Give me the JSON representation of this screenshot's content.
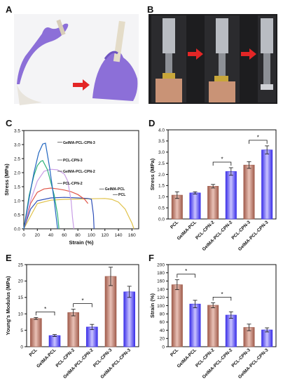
{
  "panels": {
    "a": "A",
    "b": "B",
    "c": "C",
    "d": "D",
    "e": "E",
    "f": "F"
  },
  "colors": {
    "bar_brown": "#a05c4c",
    "bar_blue": "#3b30e8",
    "pcl": "#e0c24a",
    "gelma_pcl": "#2e4fb8",
    "pcl_cpn2": "#e0574a",
    "gelma_pcl_cpn2": "#c99ee6",
    "pcl_cpn3": "#2db37a",
    "gelma_pcl_cpn3": "#2166c0",
    "arrow": "#e32626"
  },
  "icons": [
    "gloved-hands-photo",
    "tensile-tester-photo"
  ],
  "chart_data": [
    {
      "id": "C",
      "type": "line",
      "xlabel": "Strain (%)",
      "ylabel": "Stress (MPa)",
      "xlim": [
        0,
        170
      ],
      "ylim": [
        0,
        3.5
      ],
      "xticks": [
        "0",
        "20",
        "40",
        "60",
        "80",
        "100",
        "120",
        "140",
        "160"
      ],
      "yticks": [
        "0.0",
        "0.5",
        "1.0",
        "1.5",
        "2.0",
        "2.5",
        "3.0",
        "3.5"
      ],
      "series": [
        {
          "name": "PCL",
          "color_key": "pcl",
          "x": [
            0,
            20,
            40,
            60,
            80,
            100,
            120,
            130,
            140,
            150,
            155,
            160,
            163
          ],
          "y": [
            0,
            0.9,
            1.02,
            1.05,
            1.06,
            1.07,
            1.08,
            1.05,
            0.95,
            0.7,
            0.45,
            0.2,
            0
          ]
        },
        {
          "name": "GelMA-PCL",
          "color_key": "gelma_pcl",
          "x": [
            0,
            10,
            20,
            40,
            60,
            80,
            95,
            100,
            103,
            104
          ],
          "y": [
            0,
            0.7,
            1.0,
            1.1,
            1.12,
            1.1,
            1.08,
            1.05,
            0.5,
            0
          ]
        },
        {
          "name": "PCL-CPN-2",
          "color_key": "pcl_cpn2",
          "x": [
            0,
            10,
            20,
            30,
            40,
            50,
            60,
            70,
            80,
            90,
            95
          ],
          "y": [
            0,
            0.9,
            1.3,
            1.42,
            1.45,
            1.42,
            1.38,
            1.32,
            1.22,
            1.05,
            0.9
          ]
        },
        {
          "name": "GelMA-PCL-CPN-2",
          "color_key": "gelma_pcl_cpn2",
          "x": [
            0,
            10,
            20,
            30,
            40,
            50,
            60,
            65,
            70,
            72,
            74
          ],
          "y": [
            0,
            1.0,
            1.7,
            2.05,
            2.12,
            2.1,
            1.95,
            1.7,
            1.0,
            0.4,
            0
          ]
        },
        {
          "name": "PCL-CPN-3",
          "color_key": "pcl_cpn3",
          "x": [
            0,
            8,
            15,
            20,
            25,
            28,
            35,
            45,
            50,
            52
          ],
          "y": [
            0,
            1.2,
            1.9,
            2.25,
            2.4,
            2.43,
            2.1,
            1.2,
            0.5,
            0
          ]
        },
        {
          "name": "GelMA-PCL-CPN-3",
          "color_key": "gelma_pcl_cpn3",
          "x": [
            0,
            8,
            15,
            22,
            28,
            32,
            38,
            45,
            50
          ],
          "y": [
            0,
            1.1,
            2.0,
            2.7,
            3.02,
            3.05,
            2.2,
            1.0,
            0
          ]
        }
      ],
      "annotations": [
        {
          "text": "GelMA-PCL-CPN-3",
          "x": 58,
          "y": 3.08
        },
        {
          "text": "PCL-CPN-3",
          "x": 58,
          "y": 2.45
        },
        {
          "text": "GelMA-PCL-CPN-2",
          "x": 58,
          "y": 2.05
        },
        {
          "text": "PCL-CPN-2",
          "x": 58,
          "y": 1.62
        },
        {
          "text": "GelMA-PCL",
          "x": 120,
          "y": 1.42
        },
        {
          "text": "PCL",
          "x": 140,
          "y": 1.22
        }
      ]
    },
    {
      "id": "D",
      "type": "bar",
      "categories": [
        "PCL",
        "GelMA-PCL",
        "PCL-CPN-2",
        "GelMA-PCL-CPN-2",
        "PCL-CPN-3",
        "GelMA-PCL-CPN-3"
      ],
      "values": [
        1.07,
        1.17,
        1.47,
        2.13,
        2.42,
        3.1
      ],
      "errors": [
        0.15,
        0.05,
        0.08,
        0.17,
        0.15,
        0.18
      ],
      "bar_colors": [
        "bar_brown",
        "bar_blue",
        "bar_brown",
        "bar_blue",
        "bar_brown",
        "bar_blue"
      ],
      "ylabel": "Stress (MPa)",
      "ylim": [
        0,
        4.0
      ],
      "yticks": [
        "0.0",
        "0.5",
        "1.0",
        "1.5",
        "2.0",
        "2.5",
        "3.0",
        "3.5",
        "4.0"
      ],
      "significance": [
        {
          "from": 2,
          "to": 3,
          "label": "*"
        },
        {
          "from": 4,
          "to": 5,
          "label": "*"
        }
      ]
    },
    {
      "id": "E",
      "type": "bar",
      "categories": [
        "PCL",
        "GelMA-PCL",
        "PCL-CPN-2",
        "GelMA-PCL-CPN-2",
        "PCL-CPN-3",
        "GelMA-PCL-CPN-3"
      ],
      "values": [
        8.6,
        3.4,
        10.4,
        6.0,
        21.4,
        16.7
      ],
      "errors": [
        0.3,
        0.3,
        1.0,
        0.8,
        2.8,
        1.7
      ],
      "bar_colors": [
        "bar_brown",
        "bar_blue",
        "bar_brown",
        "bar_blue",
        "bar_brown",
        "bar_blue"
      ],
      "ylabel": "Young's Modulus (MPa)",
      "ylim": [
        0,
        25
      ],
      "yticks": [
        "0",
        "5",
        "10",
        "15",
        "20",
        "25"
      ],
      "significance": [
        {
          "from": 0,
          "to": 1,
          "label": "*"
        },
        {
          "from": 2,
          "to": 3,
          "label": "*"
        }
      ]
    },
    {
      "id": "F",
      "type": "bar",
      "categories": [
        "PCL",
        "GelMA-PCL",
        "PCL-CPN-2",
        "GelMA-PCL-CPN-2",
        "PCL-CPN-3",
        "GelMA-PCL-CPN-3"
      ],
      "values": [
        151,
        104,
        101,
        77,
        47,
        41
      ],
      "errors": [
        12,
        9,
        6,
        8,
        8,
        5
      ],
      "bar_colors": [
        "bar_brown",
        "bar_blue",
        "bar_brown",
        "bar_blue",
        "bar_brown",
        "bar_blue"
      ],
      "ylabel": "Strain (%)",
      "ylim": [
        0,
        200
      ],
      "yticks": [
        "0",
        "20",
        "40",
        "60",
        "80",
        "100",
        "120",
        "140",
        "160",
        "180",
        "200"
      ],
      "significance": [
        {
          "from": 0,
          "to": 1,
          "label": "*"
        },
        {
          "from": 2,
          "to": 3,
          "label": "*"
        }
      ]
    }
  ]
}
